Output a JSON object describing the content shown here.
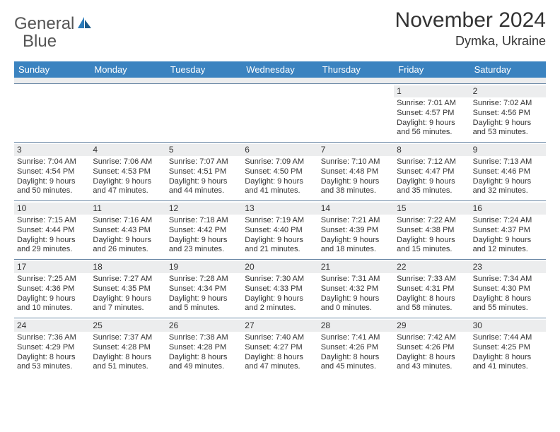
{
  "brand": {
    "part1": "General",
    "part2": "Blue"
  },
  "title": "November 2024",
  "location": "Dymka, Ukraine",
  "colors": {
    "header_bg": "#3b83c0",
    "header_text": "#ffffff",
    "daynum_bg": "#ecedee",
    "week_border": "#6a87a5",
    "text": "#333333",
    "brand_gray": "#555555",
    "brand_blue": "#2a7ab9"
  },
  "weekdays": [
    "Sunday",
    "Monday",
    "Tuesday",
    "Wednesday",
    "Thursday",
    "Friday",
    "Saturday"
  ],
  "weeks": [
    [
      null,
      null,
      null,
      null,
      null,
      {
        "n": "1",
        "sr": "Sunrise: 7:01 AM",
        "ss": "Sunset: 4:57 PM",
        "d1": "Daylight: 9 hours",
        "d2": "and 56 minutes."
      },
      {
        "n": "2",
        "sr": "Sunrise: 7:02 AM",
        "ss": "Sunset: 4:56 PM",
        "d1": "Daylight: 9 hours",
        "d2": "and 53 minutes."
      }
    ],
    [
      {
        "n": "3",
        "sr": "Sunrise: 7:04 AM",
        "ss": "Sunset: 4:54 PM",
        "d1": "Daylight: 9 hours",
        "d2": "and 50 minutes."
      },
      {
        "n": "4",
        "sr": "Sunrise: 7:06 AM",
        "ss": "Sunset: 4:53 PM",
        "d1": "Daylight: 9 hours",
        "d2": "and 47 minutes."
      },
      {
        "n": "5",
        "sr": "Sunrise: 7:07 AM",
        "ss": "Sunset: 4:51 PM",
        "d1": "Daylight: 9 hours",
        "d2": "and 44 minutes."
      },
      {
        "n": "6",
        "sr": "Sunrise: 7:09 AM",
        "ss": "Sunset: 4:50 PM",
        "d1": "Daylight: 9 hours",
        "d2": "and 41 minutes."
      },
      {
        "n": "7",
        "sr": "Sunrise: 7:10 AM",
        "ss": "Sunset: 4:48 PM",
        "d1": "Daylight: 9 hours",
        "d2": "and 38 minutes."
      },
      {
        "n": "8",
        "sr": "Sunrise: 7:12 AM",
        "ss": "Sunset: 4:47 PM",
        "d1": "Daylight: 9 hours",
        "d2": "and 35 minutes."
      },
      {
        "n": "9",
        "sr": "Sunrise: 7:13 AM",
        "ss": "Sunset: 4:46 PM",
        "d1": "Daylight: 9 hours",
        "d2": "and 32 minutes."
      }
    ],
    [
      {
        "n": "10",
        "sr": "Sunrise: 7:15 AM",
        "ss": "Sunset: 4:44 PM",
        "d1": "Daylight: 9 hours",
        "d2": "and 29 minutes."
      },
      {
        "n": "11",
        "sr": "Sunrise: 7:16 AM",
        "ss": "Sunset: 4:43 PM",
        "d1": "Daylight: 9 hours",
        "d2": "and 26 minutes."
      },
      {
        "n": "12",
        "sr": "Sunrise: 7:18 AM",
        "ss": "Sunset: 4:42 PM",
        "d1": "Daylight: 9 hours",
        "d2": "and 23 minutes."
      },
      {
        "n": "13",
        "sr": "Sunrise: 7:19 AM",
        "ss": "Sunset: 4:40 PM",
        "d1": "Daylight: 9 hours",
        "d2": "and 21 minutes."
      },
      {
        "n": "14",
        "sr": "Sunrise: 7:21 AM",
        "ss": "Sunset: 4:39 PM",
        "d1": "Daylight: 9 hours",
        "d2": "and 18 minutes."
      },
      {
        "n": "15",
        "sr": "Sunrise: 7:22 AM",
        "ss": "Sunset: 4:38 PM",
        "d1": "Daylight: 9 hours",
        "d2": "and 15 minutes."
      },
      {
        "n": "16",
        "sr": "Sunrise: 7:24 AM",
        "ss": "Sunset: 4:37 PM",
        "d1": "Daylight: 9 hours",
        "d2": "and 12 minutes."
      }
    ],
    [
      {
        "n": "17",
        "sr": "Sunrise: 7:25 AM",
        "ss": "Sunset: 4:36 PM",
        "d1": "Daylight: 9 hours",
        "d2": "and 10 minutes."
      },
      {
        "n": "18",
        "sr": "Sunrise: 7:27 AM",
        "ss": "Sunset: 4:35 PM",
        "d1": "Daylight: 9 hours",
        "d2": "and 7 minutes."
      },
      {
        "n": "19",
        "sr": "Sunrise: 7:28 AM",
        "ss": "Sunset: 4:34 PM",
        "d1": "Daylight: 9 hours",
        "d2": "and 5 minutes."
      },
      {
        "n": "20",
        "sr": "Sunrise: 7:30 AM",
        "ss": "Sunset: 4:33 PM",
        "d1": "Daylight: 9 hours",
        "d2": "and 2 minutes."
      },
      {
        "n": "21",
        "sr": "Sunrise: 7:31 AM",
        "ss": "Sunset: 4:32 PM",
        "d1": "Daylight: 9 hours",
        "d2": "and 0 minutes."
      },
      {
        "n": "22",
        "sr": "Sunrise: 7:33 AM",
        "ss": "Sunset: 4:31 PM",
        "d1": "Daylight: 8 hours",
        "d2": "and 58 minutes."
      },
      {
        "n": "23",
        "sr": "Sunrise: 7:34 AM",
        "ss": "Sunset: 4:30 PM",
        "d1": "Daylight: 8 hours",
        "d2": "and 55 minutes."
      }
    ],
    [
      {
        "n": "24",
        "sr": "Sunrise: 7:36 AM",
        "ss": "Sunset: 4:29 PM",
        "d1": "Daylight: 8 hours",
        "d2": "and 53 minutes."
      },
      {
        "n": "25",
        "sr": "Sunrise: 7:37 AM",
        "ss": "Sunset: 4:28 PM",
        "d1": "Daylight: 8 hours",
        "d2": "and 51 minutes."
      },
      {
        "n": "26",
        "sr": "Sunrise: 7:38 AM",
        "ss": "Sunset: 4:28 PM",
        "d1": "Daylight: 8 hours",
        "d2": "and 49 minutes."
      },
      {
        "n": "27",
        "sr": "Sunrise: 7:40 AM",
        "ss": "Sunset: 4:27 PM",
        "d1": "Daylight: 8 hours",
        "d2": "and 47 minutes."
      },
      {
        "n": "28",
        "sr": "Sunrise: 7:41 AM",
        "ss": "Sunset: 4:26 PM",
        "d1": "Daylight: 8 hours",
        "d2": "and 45 minutes."
      },
      {
        "n": "29",
        "sr": "Sunrise: 7:42 AM",
        "ss": "Sunset: 4:26 PM",
        "d1": "Daylight: 8 hours",
        "d2": "and 43 minutes."
      },
      {
        "n": "30",
        "sr": "Sunrise: 7:44 AM",
        "ss": "Sunset: 4:25 PM",
        "d1": "Daylight: 8 hours",
        "d2": "and 41 minutes."
      }
    ]
  ]
}
